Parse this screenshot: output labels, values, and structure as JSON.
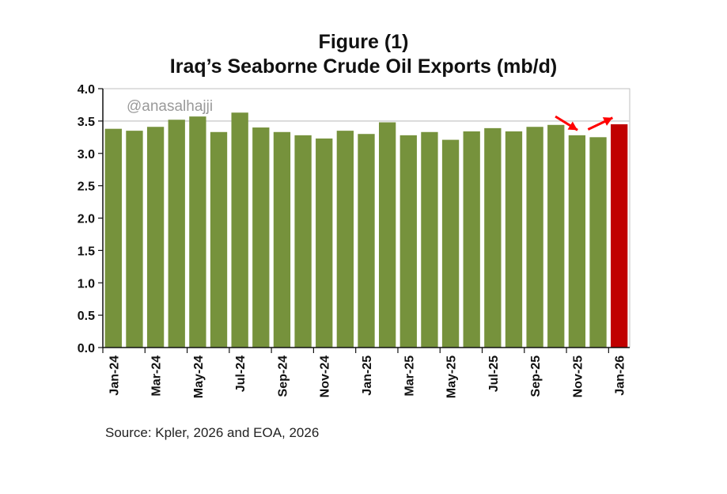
{
  "title": "Figure (1)",
  "subtitle": "Iraq’s Seaborne Crude Oil Exports (mb/d)",
  "watermark": "@anasalhajji",
  "source": "Source: Kpler, 2026 and EOA, 2026",
  "chart_data": {
    "type": "bar",
    "title": "Figure (1)",
    "subtitle": "Iraq’s Seaborne Crude Oil Exports (mb/d)",
    "xlabel": "",
    "ylabel": "",
    "ylim": [
      0,
      4.0
    ],
    "yticks": [
      0.0,
      0.5,
      1.0,
      1.5,
      2.0,
      2.5,
      3.0,
      3.5,
      4.0
    ],
    "ytick_labels": [
      "0.0",
      "0.5",
      "1.0",
      "1.5",
      "2.0",
      "2.5",
      "3.0",
      "3.5",
      "4.0"
    ],
    "grid": "horizontal line at 3.5",
    "categories": [
      "Jan-24",
      "Feb-24",
      "Mar-24",
      "Apr-24",
      "May-24",
      "Jun-24",
      "Jul-24",
      "Aug-24",
      "Sep-24",
      "Oct-24",
      "Nov-24",
      "Dec-24",
      "Jan-25",
      "Feb-25",
      "Mar-25",
      "Apr-25",
      "May-25",
      "Jun-25",
      "Jul-25",
      "Aug-25",
      "Sep-25",
      "Oct-25",
      "Nov-25",
      "Dec-25",
      "Jan-26"
    ],
    "xtick_labels_shown": [
      "Jan-24",
      "Mar-24",
      "May-24",
      "Jul-24",
      "Sep-24",
      "Nov-24",
      "Jan-25",
      "Mar-25",
      "May-25",
      "Jul-25",
      "Sep-25",
      "Nov-25",
      "Jan-26"
    ],
    "values": [
      3.38,
      3.35,
      3.41,
      3.52,
      3.57,
      3.33,
      3.63,
      3.4,
      3.33,
      3.28,
      3.23,
      3.35,
      3.3,
      3.48,
      3.28,
      3.33,
      3.21,
      3.34,
      3.39,
      3.34,
      3.41,
      3.44,
      3.28,
      3.25,
      3.45
    ],
    "colors": {
      "bar": "#76923c",
      "highlight_bar": "#c00000",
      "arrow": "#ff0000",
      "gridline": "#d0d0d0"
    },
    "highlight_index": 24,
    "annotations": [
      {
        "type": "arrow",
        "direction": "down",
        "near": "Nov-25"
      },
      {
        "type": "arrow",
        "direction": "up",
        "near": "Jan-26"
      }
    ]
  }
}
